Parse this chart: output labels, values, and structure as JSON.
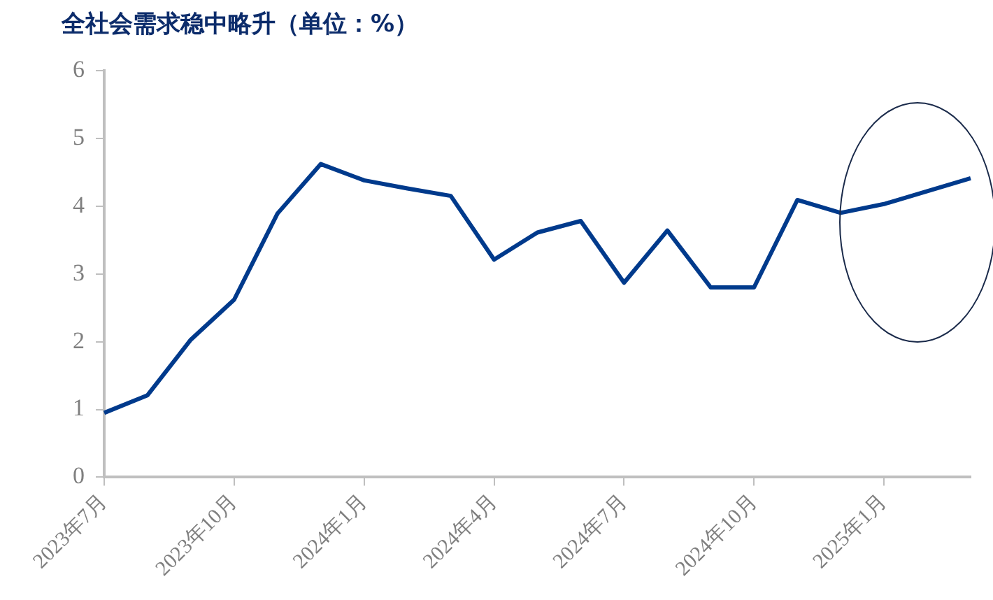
{
  "chart_data": {
    "type": "line",
    "title": "全社会需求稳中略升（单位：%）",
    "categories": [
      "2023年7月",
      null,
      null,
      "2023年10月",
      null,
      null,
      "2024年1月",
      null,
      null,
      "2024年4月",
      null,
      null,
      "2024年7月",
      null,
      null,
      "2024年10月",
      null,
      null,
      "2025年1月",
      null,
      null
    ],
    "series": [
      {
        "color": "#003a8c",
        "values": [
          0.95,
          1.21,
          2.03,
          2.62,
          3.89,
          4.62,
          4.38,
          4.26,
          4.15,
          3.21,
          3.61,
          3.78,
          2.87,
          3.64,
          2.8,
          2.8,
          4.09,
          3.9,
          4.03,
          4.22,
          4.41
        ]
      }
    ],
    "ylim": [
      0,
      6
    ],
    "yticks": [
      0,
      1,
      2,
      3,
      4,
      5,
      6
    ],
    "grid": false,
    "legend": false,
    "marker": "none",
    "line_style": "solid"
  }
}
